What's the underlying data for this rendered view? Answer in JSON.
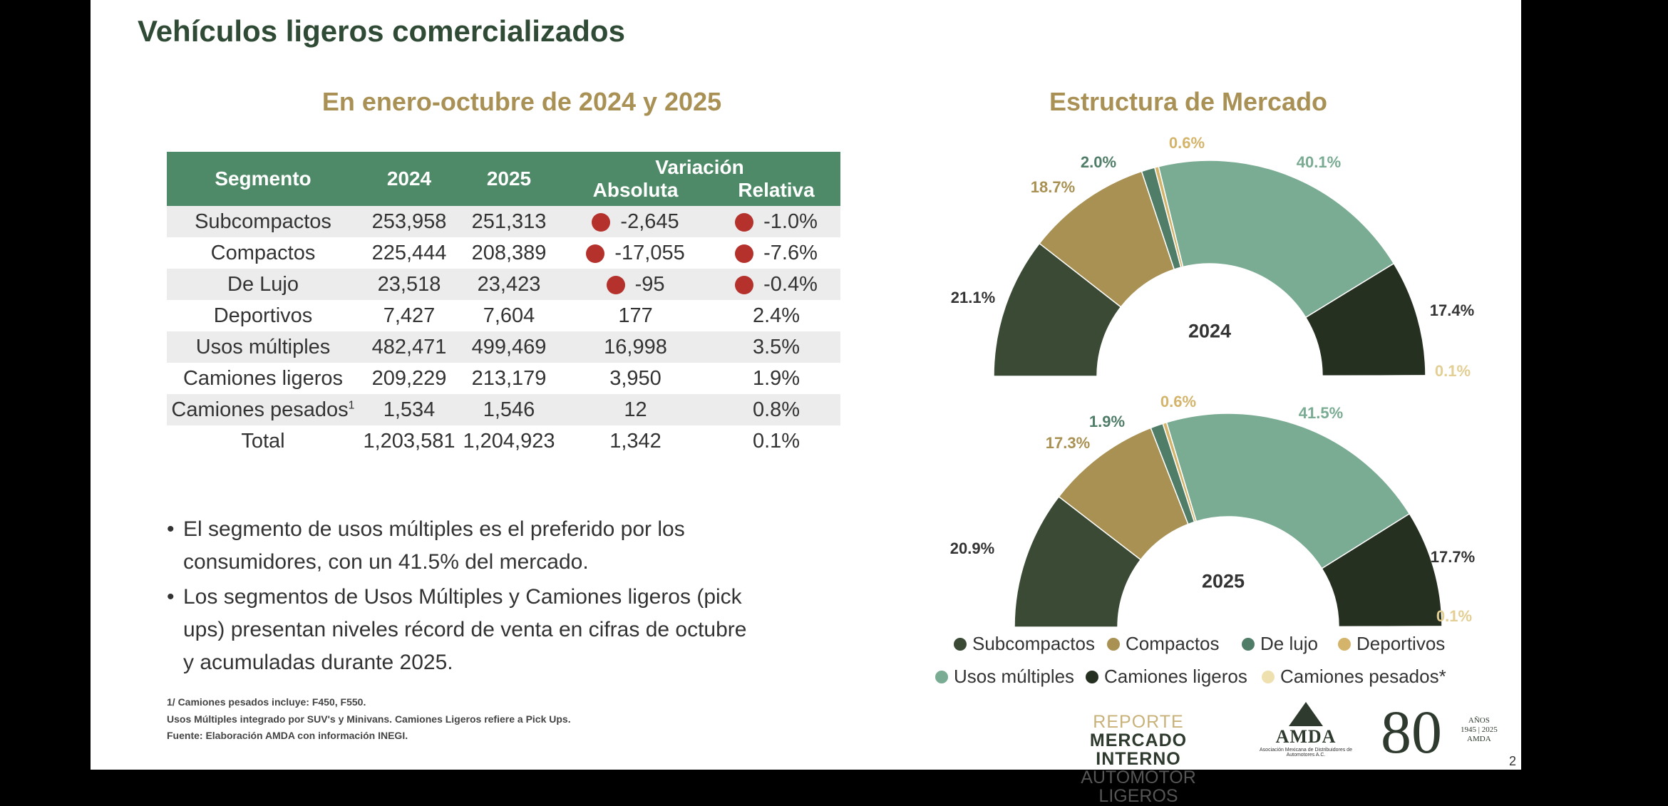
{
  "title": "Vehículos ligeros comercializados",
  "subtitle": "En enero-octubre de 2024 y 2025",
  "table": {
    "headers": {
      "segment": "Segmento",
      "y2024": "2024",
      "y2025": "2025",
      "variation": "Variación",
      "absolute": "Absoluta",
      "relative": "Relativa"
    },
    "rows": [
      {
        "segment": "Subcompactos",
        "sup": "",
        "y2024": "253,958",
        "y2025": "251,313",
        "absolute": "-2,645",
        "relative": "-1.0%",
        "negative": true
      },
      {
        "segment": "Compactos",
        "sup": "",
        "y2024": "225,444",
        "y2025": "208,389",
        "absolute": "-17,055",
        "relative": "-7.6%",
        "negative": true
      },
      {
        "segment": "De Lujo",
        "sup": "",
        "y2024": "23,518",
        "y2025": "23,423",
        "absolute": "-95",
        "relative": "-0.4%",
        "negative": true
      },
      {
        "segment": "Deportivos",
        "sup": "",
        "y2024": "7,427",
        "y2025": "7,604",
        "absolute": "177",
        "relative": "2.4%",
        "negative": false
      },
      {
        "segment": "Usos múltiples",
        "sup": "",
        "y2024": "482,471",
        "y2025": "499,469",
        "absolute": "16,998",
        "relative": "3.5%",
        "negative": false
      },
      {
        "segment": "Camiones ligeros",
        "sup": "",
        "y2024": "209,229",
        "y2025": "213,179",
        "absolute": "3,950",
        "relative": "1.9%",
        "negative": false
      },
      {
        "segment": "Camiones pesados",
        "sup": "1",
        "y2024": "1,534",
        "y2025": "1,546",
        "absolute": "12",
        "relative": "0.8%",
        "negative": false
      },
      {
        "segment": "Total",
        "sup": "",
        "y2024": "1,203,581",
        "y2025": "1,204,923",
        "absolute": "1,342",
        "relative": "0.1%",
        "negative": false
      }
    ]
  },
  "bullets": [
    {
      "line1": "El segmento de usos múltiples es el preferido por los",
      "line2": "consumidores, con un 41.5% del mercado."
    },
    {
      "line1": "Los segmentos de Usos Múltiples y Camiones ligeros (pick",
      "line2": "ups) presentan niveles récord de venta en cifras de octubre",
      "line3": "y acumuladas durante 2025."
    }
  ],
  "footnotes": [
    "1/ Camiones pesados incluye: F450, F550.",
    "Usos Múltiples integrado por SUV's y Minivans. Camiones Ligeros refiere a Pick Ups.",
    "Fuente: Elaboración AMDA con información INEGI."
  ],
  "chart_data": {
    "type": "pie",
    "subtype": "half-donut",
    "title": "Estructura de Mercado",
    "categories": [
      "Subcompactos",
      "Compactos",
      "De lujo",
      "Deportivos",
      "Usos múltiples",
      "Camiones ligeros",
      "Camiones pesados*"
    ],
    "colors": [
      "#3a4a35",
      "#a89152",
      "#4f7d68",
      "#d4b46a",
      "#7aab93",
      "#263020",
      "#efe0b0"
    ],
    "series": [
      {
        "name": "2024",
        "values": [
          21.1,
          18.7,
          2.0,
          0.6,
          40.1,
          17.4,
          0.1
        ],
        "labels": [
          "21.1%",
          "18.7%",
          "2.0%",
          "0.6%",
          "40.1%",
          "17.4%",
          "0.1%"
        ]
      },
      {
        "name": "2025",
        "values": [
          20.9,
          17.3,
          1.9,
          0.6,
          41.5,
          17.7,
          0.1
        ],
        "labels": [
          "20.9%",
          "17.3%",
          "1.9%",
          "0.6%",
          "41.5%",
          "17.7%",
          "0.1%"
        ]
      }
    ],
    "legend_position": "bottom"
  },
  "branding": {
    "report": "REPORTE",
    "line2": "MERCADO INTERNO",
    "line3": "AUTOMOTOR LIGEROS",
    "amda": "AMDA",
    "amda_full": "Asociación Mexicana de Distribuidores de Automotores A.C.",
    "anniv": "80",
    "anniv_sub": "AÑOS",
    "anniv_years": "1945 | 2025",
    "anniv_org": "AMDA"
  },
  "page_number": "2"
}
